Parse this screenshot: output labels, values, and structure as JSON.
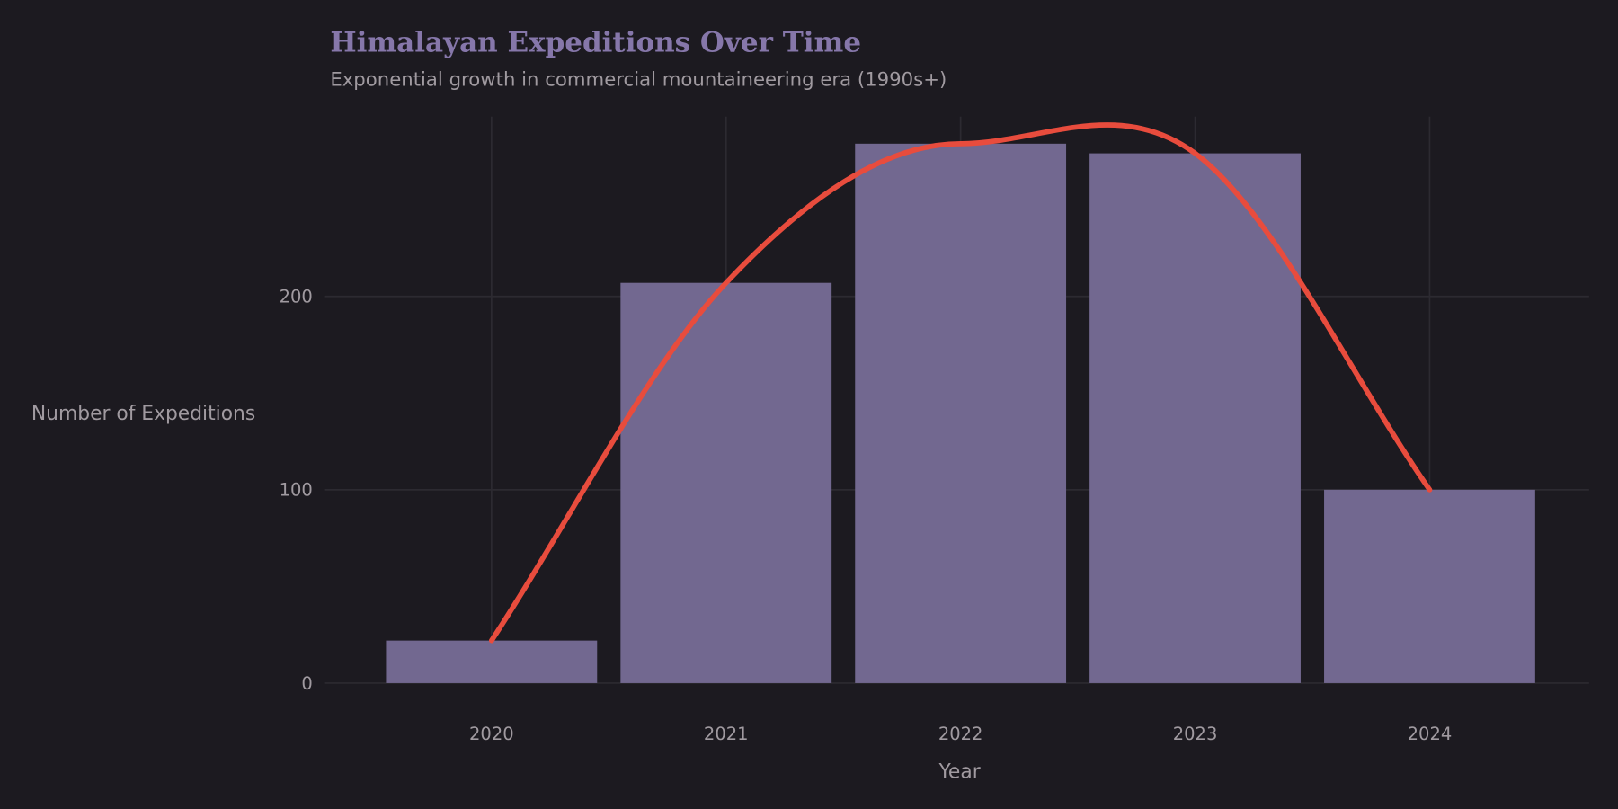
{
  "chart_data": {
    "type": "bar",
    "title": "Himalayan Expeditions Over Time",
    "subtitle": "Exponential growth in commercial mountaineering era (1990s+)",
    "xlabel": "Year",
    "ylabel": "Number of Expeditions",
    "categories": [
      "2020",
      "2021",
      "2022",
      "2023",
      "2024"
    ],
    "values": [
      22,
      207,
      279,
      274,
      100
    ],
    "overlay": {
      "type": "smoothed-line",
      "values": [
        22,
        207,
        279,
        274,
        100
      ]
    },
    "yticks": [
      "0",
      "100",
      "200"
    ],
    "ylim": [
      0,
      293
    ],
    "xlim": [
      2019.29,
      2024.68
    ],
    "grid": true,
    "legend": "none",
    "colors": {
      "background": "#1c1a20",
      "bar": "#726890",
      "line": "#e84c3d",
      "title": "#8677aa",
      "grid": "#2c2a31",
      "text": "#a09aa0"
    }
  }
}
